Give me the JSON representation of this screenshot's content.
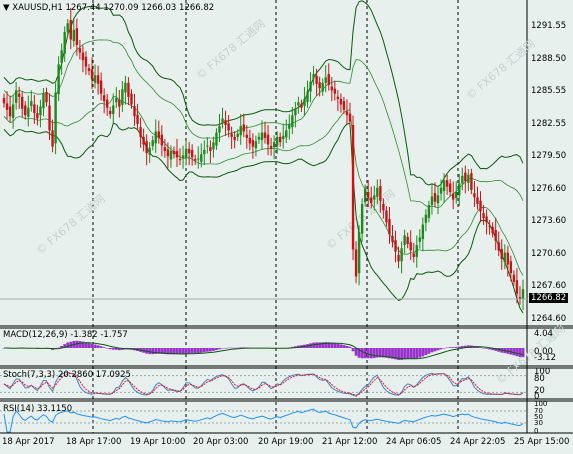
{
  "header": {
    "symbol": "XAUUSD,H1",
    "ohlc": "1267.44 1270.09 1266.03 1266.82"
  },
  "main_panel": {
    "price_axis": [
      "1291.55",
      "1288.50",
      "1285.55",
      "1282.55",
      "1279.50",
      "1276.60",
      "1273.60",
      "1270.60",
      "1267.60",
      "1264.60"
    ],
    "current_price": "1266.82",
    "watermark": "FX678 汇通网"
  },
  "macd_panel": {
    "label": "MACD(12,26,9) -1.382 -1.757",
    "axis": [
      "4.04",
      "0.00",
      "-3.12"
    ]
  },
  "stoch_panel": {
    "label": "Stoch(7,3,3) 20.2860 17.0925",
    "axis": [
      "100",
      "80",
      "20",
      "0"
    ]
  },
  "rsi_panel": {
    "label": "RSI(14) 33.1150",
    "axis": [
      "100",
      "70",
      "50",
      "30",
      "0"
    ]
  },
  "time_axis": [
    "18 Apr 2017",
    "18 Apr 17:00",
    "19 Apr 10:00",
    "20 Apr 03:00",
    "20 Apr 19:00",
    "21 Apr 12:00",
    "24 Apr 06:05",
    "24 Apr 22:05",
    "25 Apr 15:00"
  ],
  "colors": {
    "background": "#e8f0ee",
    "bull_candle": "#1e8a1e",
    "bear_candle": "#c81414",
    "bands": "#0a5a0a",
    "macd_hist": "#9932cc",
    "stoch_main": "#4682b4",
    "stoch_signal": "#dc143c",
    "rsi": "#1e90ff"
  }
}
